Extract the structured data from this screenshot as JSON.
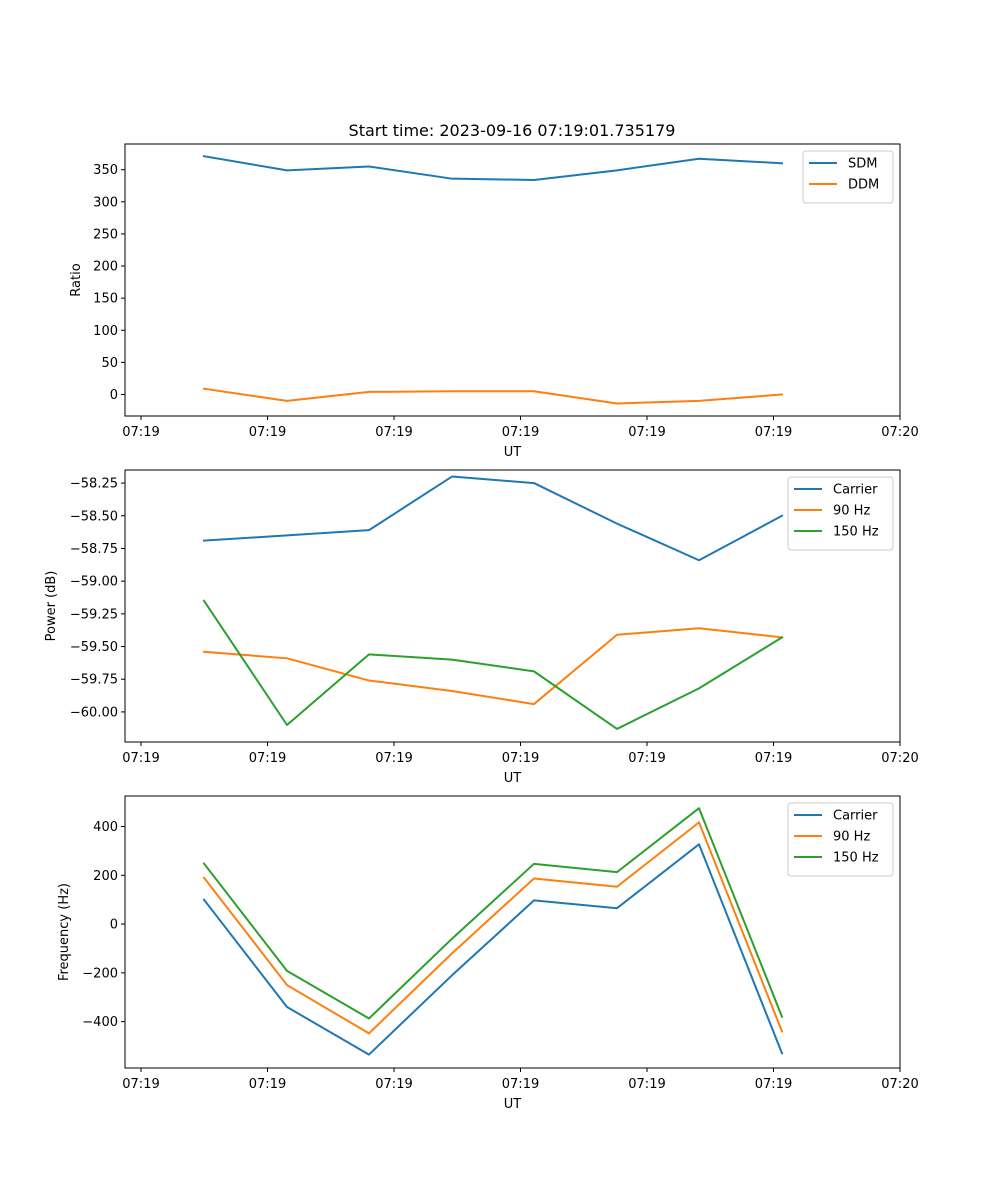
{
  "figure_title": "Start time: 2023-09-16 07:19:01.735179",
  "colors": {
    "blue": "#1f77b4",
    "orange": "#ff7f0e",
    "green": "#2ca02c"
  },
  "chart_data": [
    {
      "type": "line",
      "title": "Start time: 2023-09-16 07:19:01.735179",
      "xlabel": "UT",
      "ylabel": "Ratio",
      "x_tick_labels": [
        "07:19",
        "07:19",
        "07:19",
        "07:19",
        "07:19",
        "07:19",
        "07:20"
      ],
      "y_ticks": [
        0,
        50,
        100,
        150,
        200,
        250,
        300,
        350
      ],
      "y_tick_labels": [
        "0",
        "50",
        "100",
        "150",
        "200",
        "250",
        "300",
        "350"
      ],
      "ylim": [
        -33.5,
        390
      ],
      "legend_position": "top-right",
      "series": [
        {
          "name": "SDM",
          "color": "#1f77b4",
          "values": [
            371,
            349,
            355,
            336,
            334,
            349,
            367,
            360
          ]
        },
        {
          "name": "DDM",
          "color": "#ff7f0e",
          "values": [
            9,
            -10,
            4,
            5,
            5,
            -14,
            -10,
            0
          ]
        }
      ]
    },
    {
      "type": "line",
      "title": "",
      "xlabel": "UT",
      "ylabel": "Power (dB)",
      "x_tick_labels": [
        "07:19",
        "07:19",
        "07:19",
        "07:19",
        "07:19",
        "07:19",
        "07:20"
      ],
      "y_ticks": [
        -60.0,
        -59.75,
        -59.5,
        -59.25,
        -59.0,
        -58.75,
        -58.5,
        -58.25
      ],
      "y_tick_labels": [
        "−60.00",
        "−59.75",
        "−59.50",
        "−59.25",
        "−59.00",
        "−58.75",
        "−58.50",
        "−58.25"
      ],
      "ylim": [
        -60.23,
        -58.15
      ],
      "legend_position": "top-right",
      "series": [
        {
          "name": "Carrier",
          "color": "#1f77b4",
          "values": [
            -58.69,
            -58.65,
            -58.61,
            -58.2,
            -58.25,
            -58.56,
            -58.84,
            -58.5
          ]
        },
        {
          "name": "90 Hz",
          "color": "#ff7f0e",
          "values": [
            -59.54,
            -59.59,
            -59.76,
            -59.84,
            -59.94,
            -59.41,
            -59.36,
            -59.43
          ]
        },
        {
          "name": "150 Hz",
          "color": "#2ca02c",
          "values": [
            -59.15,
            -60.1,
            -59.56,
            -59.6,
            -59.69,
            -60.13,
            -59.82,
            -59.43
          ]
        }
      ]
    },
    {
      "type": "line",
      "title": "",
      "xlabel": "UT",
      "ylabel": "Frequency (Hz)",
      "x_tick_labels": [
        "07:19",
        "07:19",
        "07:19",
        "07:19",
        "07:19",
        "07:19",
        "07:20"
      ],
      "y_ticks": [
        -400,
        -200,
        0,
        200,
        400
      ],
      "y_tick_labels": [
        "−400",
        "−200",
        "0",
        "200",
        "400"
      ],
      "ylim": [
        -590,
        525
      ],
      "legend_position": "top-right",
      "series": [
        {
          "name": "Carrier",
          "color": "#1f77b4",
          "values": [
            100,
            -340,
            -535,
            -210,
            97,
            65,
            327,
            -530
          ]
        },
        {
          "name": "90 Hz",
          "color": "#ff7f0e",
          "values": [
            190,
            -250,
            -448,
            -120,
            187,
            153,
            417,
            -440
          ]
        },
        {
          "name": "150 Hz",
          "color": "#2ca02c",
          "values": [
            248,
            -192,
            -387,
            -60,
            247,
            213,
            475,
            -380
          ]
        }
      ]
    }
  ]
}
